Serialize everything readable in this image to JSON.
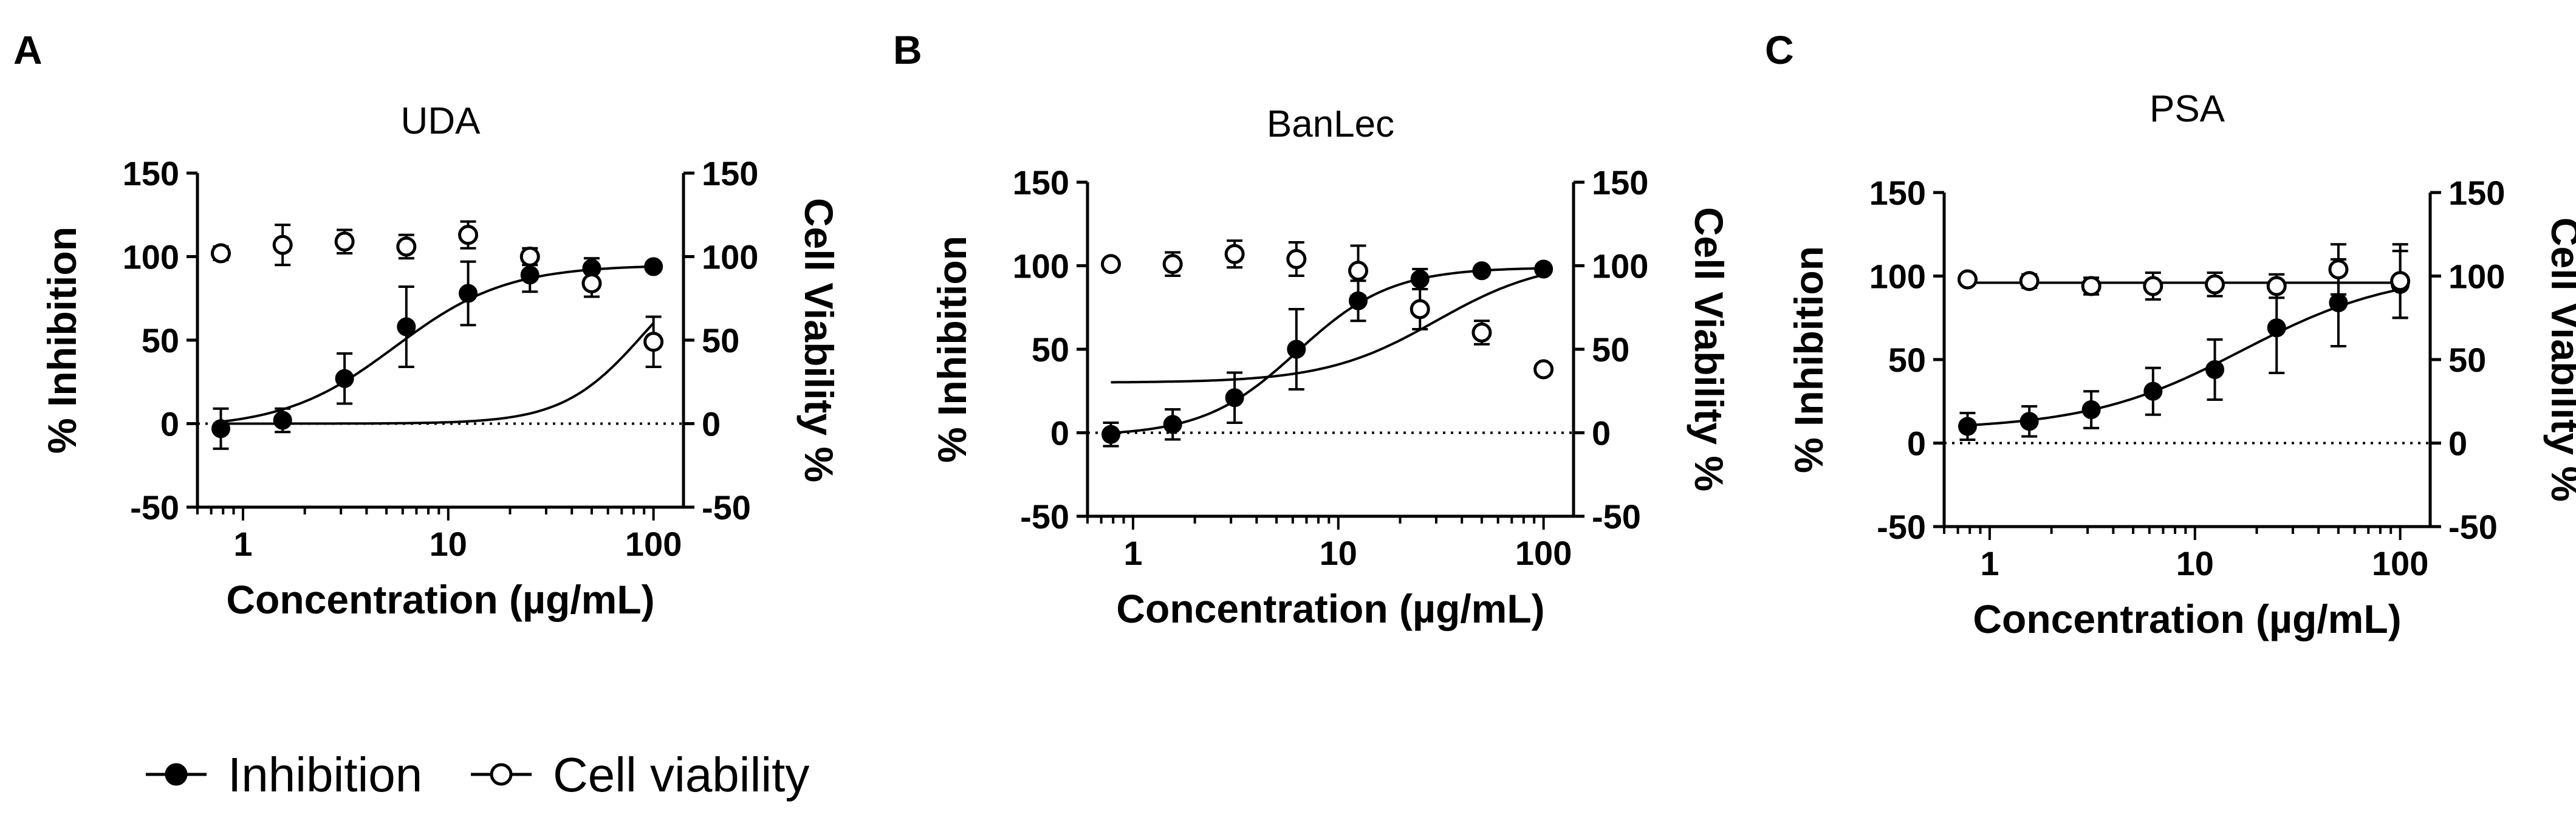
{
  "colors": {
    "ink": "#000000",
    "background": "#ffffff",
    "hollow": "#ffffff"
  },
  "legend": {
    "items": [
      {
        "label": "Inhibition",
        "marker": "filled-circle"
      },
      {
        "label": "Cell viability",
        "marker": "open-circle"
      }
    ]
  },
  "chart_data": [
    {
      "panel": "A",
      "type": "scatter",
      "title": "UDA",
      "xlabel": "Concentration (µg/mL)",
      "ylabel": "% Inhibition",
      "ylabel_right": "Cell Viability %",
      "x_scale": "log",
      "xlim": [
        0.6,
        140
      ],
      "ylim": [
        -50,
        150
      ],
      "x_ticks": [
        1,
        10,
        100
      ],
      "y_ticks": [
        -50,
        0,
        50,
        100,
        150
      ],
      "reference_line_y": 0,
      "series": [
        {
          "name": "Inhibition",
          "marker": "filled",
          "x": [
            0.78,
            1.56,
            3.125,
            6.25,
            12.5,
            25,
            50,
            100
          ],
          "y": [
            -3,
            2,
            27,
            58,
            78,
            89,
            93,
            94
          ],
          "err": [
            12,
            7,
            15,
            24,
            19,
            10,
            6,
            0
          ],
          "fit": {
            "bottom": -3,
            "top": 95,
            "ec50": 5.5,
            "hill": 1.6
          }
        },
        {
          "name": "Cell viability",
          "marker": "open",
          "x": [
            0.78,
            1.56,
            3.125,
            6.25,
            12.5,
            25,
            50,
            100
          ],
          "y": [
            102,
            107,
            109,
            106,
            113,
            100,
            84,
            49
          ],
          "err": [
            4,
            12,
            7,
            7,
            8,
            5,
            8,
            15
          ],
          "fit": {
            "bottom": 0,
            "top": 108,
            "ec50": 90,
            "hill": 2.2
          }
        }
      ]
    },
    {
      "panel": "B",
      "type": "scatter",
      "title": "BanLec",
      "xlabel": "Concentration (µg/mL)",
      "ylabel": "% Inhibition",
      "ylabel_right": "Cell Viability %",
      "x_scale": "log",
      "xlim": [
        0.6,
        140
      ],
      "ylim": [
        -50,
        150
      ],
      "x_ticks": [
        1,
        10,
        100
      ],
      "y_ticks": [
        -50,
        0,
        50,
        100,
        150
      ],
      "reference_line_y": 0,
      "series": [
        {
          "name": "Inhibition",
          "marker": "filled",
          "x": [
            0.78,
            1.56,
            3.125,
            6.25,
            12.5,
            25,
            50,
            100
          ],
          "y": [
            -1,
            5,
            21,
            50,
            79,
            92,
            97,
            98
          ],
          "err": [
            7,
            9,
            15,
            24,
            12,
            6,
            0,
            0
          ],
          "fit": {
            "bottom": -2,
            "top": 99,
            "ec50": 6.3,
            "hill": 1.9
          }
        },
        {
          "name": "Cell viability",
          "marker": "open",
          "x": [
            0.78,
            1.56,
            3.125,
            6.25,
            12.5,
            25,
            50,
            100
          ],
          "y": [
            101,
            101,
            107,
            104,
            97,
            74,
            60,
            38
          ],
          "err": [
            3,
            7,
            8,
            10,
            15,
            12,
            7,
            3
          ],
          "fit": {
            "bottom": 30,
            "top": 104,
            "ec50": 30,
            "hill": 1.6
          }
        }
      ]
    },
    {
      "panel": "C",
      "type": "scatter",
      "title": "PSA",
      "xlabel": "Concentration (µg/mL)",
      "ylabel": "% Inhibition",
      "ylabel_right": "Cell Viability %",
      "x_scale": "log",
      "xlim": [
        0.6,
        140
      ],
      "ylim": [
        -50,
        150
      ],
      "x_ticks": [
        1,
        10,
        100
      ],
      "y_ticks": [
        -50,
        0,
        50,
        100,
        150
      ],
      "reference_line_y": 0,
      "series": [
        {
          "name": "Inhibition",
          "marker": "filled",
          "x": [
            0.78,
            1.56,
            3.125,
            6.25,
            12.5,
            25,
            50,
            100
          ],
          "y": [
            10,
            13,
            20,
            31,
            44,
            69,
            84,
            95
          ],
          "err": [
            8,
            9,
            11,
            14,
            18,
            27,
            26,
            20
          ],
          "fit": {
            "bottom": 8,
            "top": 103,
            "ec50": 17,
            "hill": 1.15
          }
        },
        {
          "name": "Cell viability",
          "marker": "open",
          "x": [
            0.78,
            1.56,
            3.125,
            6.25,
            12.5,
            25,
            50,
            100
          ],
          "y": [
            98,
            97,
            94,
            94,
            95,
            94,
            104,
            97
          ],
          "err": [
            2,
            4,
            5,
            8,
            7,
            7,
            15,
            22
          ],
          "fit": {
            "flat": 96
          }
        }
      ]
    }
  ]
}
